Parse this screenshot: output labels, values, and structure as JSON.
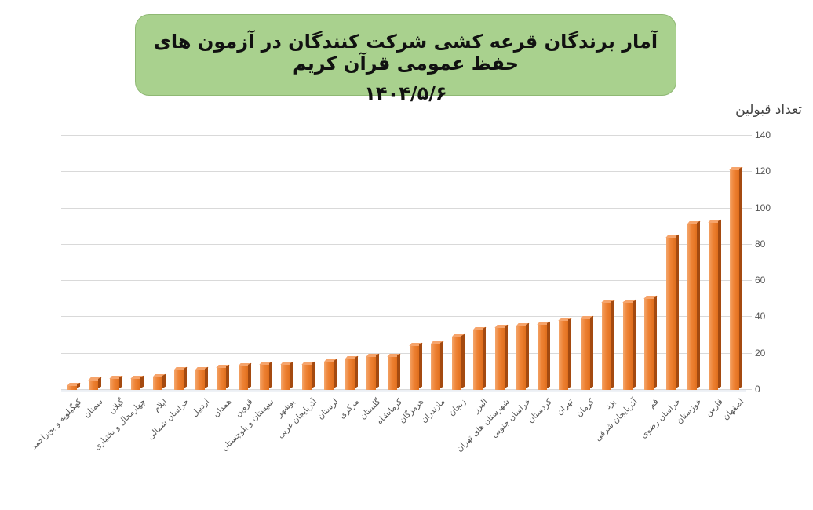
{
  "title": {
    "line1": "آمار برندگان قرعه کشی شرکت کنندگان در آزمون های حفظ عمومی قرآن کریم",
    "line2": "۱۴۰۴/۵/۶"
  },
  "colors": {
    "title_bg": "#a9d18e",
    "bar": "#ee8234",
    "bar_side": "#a44a10",
    "grid": "#d9d9d9"
  },
  "chart_data": {
    "type": "bar",
    "title": "آمار برندگان قرعه کشی شرکت کنندگان در آزمون های حفظ عمومی قرآن کریم ۱۴۰۴/۵/۶",
    "xlabel": "",
    "ylabel": "تعداد قبولین",
    "ylim": [
      0,
      140
    ],
    "yticks": [
      0,
      20,
      40,
      60,
      80,
      100,
      120,
      140
    ],
    "grid": true,
    "legend": "none",
    "categories": [
      "کهگیلویه و بویراحمد",
      "سمنان",
      "گیلان",
      "چهارمحال و بختیاری",
      "ایلام",
      "خراسان شمالی",
      "اردبیل",
      "همدان",
      "قزوین",
      "سیستان و بلوچستان",
      "بوشهر",
      "آذربایجان غربی",
      "لرستان",
      "مرکزی",
      "گلستان",
      "کرمانشاه",
      "هرمزگان",
      "مازندران",
      "زنجان",
      "البرز",
      "شهرستان های تهران",
      "خراسان جنوبی",
      "کردستان",
      "تهران",
      "کرمان",
      "یزد",
      "آذربایجان شرقی",
      "قم",
      "خراسان رضوی",
      "خوزستان",
      "فارس",
      "اصفهان"
    ],
    "values": [
      2,
      5,
      6,
      6,
      7,
      11,
      11,
      12,
      13,
      14,
      14,
      14,
      15,
      17,
      18,
      18,
      24,
      25,
      29,
      33,
      34,
      35,
      36,
      38,
      39,
      48,
      48,
      50,
      84,
      91,
      92,
      121
    ]
  }
}
